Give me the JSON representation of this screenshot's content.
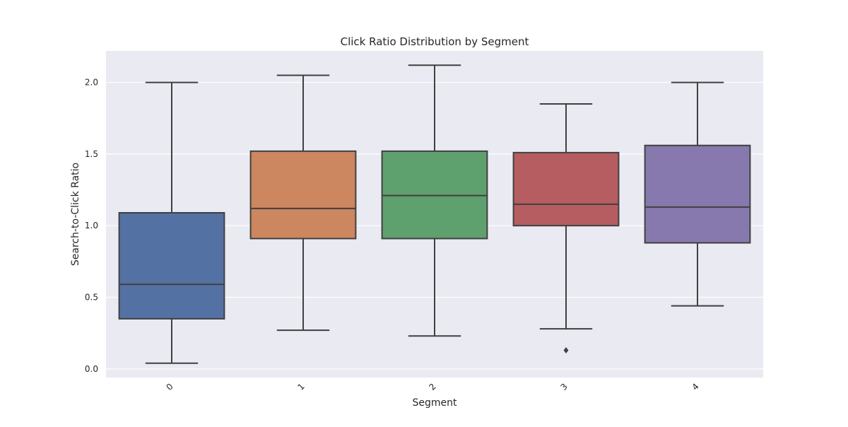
{
  "chart_data": {
    "type": "box",
    "title": "Click Ratio Distribution by Segment",
    "xlabel": "Segment",
    "ylabel": "Search-to-Click Ratio",
    "categories": [
      "0",
      "1",
      "2",
      "3",
      "4"
    ],
    "ylim": [
      -0.06,
      2.22
    ],
    "yticks": [
      0.0,
      0.5,
      1.0,
      1.5,
      2.0
    ],
    "ytick_labels": [
      "0.0",
      "0.5",
      "1.0",
      "1.5",
      "2.0"
    ],
    "grid": true,
    "legend": "none",
    "boxes": [
      {
        "category": "0",
        "whisker_low": 0.04,
        "q1": 0.35,
        "median": 0.59,
        "q3": 1.09,
        "whisker_high": 2.0,
        "outliers": []
      },
      {
        "category": "1",
        "whisker_low": 0.27,
        "q1": 0.91,
        "median": 1.12,
        "q3": 1.52,
        "whisker_high": 2.05,
        "outliers": []
      },
      {
        "category": "2",
        "whisker_low": 0.23,
        "q1": 0.91,
        "median": 1.21,
        "q3": 1.52,
        "whisker_high": 2.12,
        "outliers": []
      },
      {
        "category": "3",
        "whisker_low": 0.28,
        "q1": 1.0,
        "median": 1.15,
        "q3": 1.51,
        "whisker_high": 1.85,
        "outliers": [
          0.13
        ]
      },
      {
        "category": "4",
        "whisker_low": 0.44,
        "q1": 0.88,
        "median": 1.13,
        "q3": 1.56,
        "whisker_high": 2.0,
        "outliers": []
      }
    ],
    "colors": [
      "#5471a3",
      "#cc8660",
      "#5fa06f",
      "#b55d61",
      "#8779ad"
    ],
    "background_color": "#eaeaf2",
    "grid_color": "#ffffff",
    "line_color": "#404040"
  }
}
